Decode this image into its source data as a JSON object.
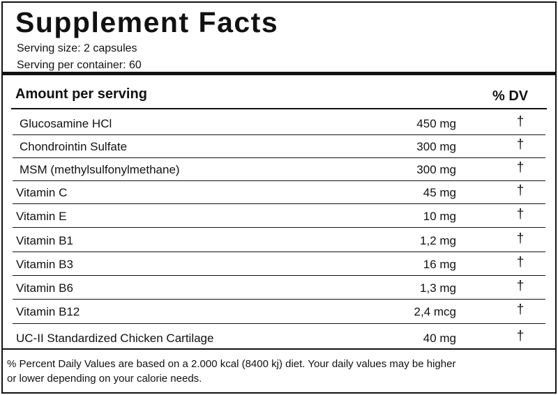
{
  "title": "Supplement Facts",
  "serving": [
    "Serving size: 2 capsules",
    "Serving per container: 60"
  ],
  "header": {
    "amount": "Amount per serving",
    "dv": "% DV"
  },
  "rows": [
    {
      "name": "Glucosamine HCl",
      "amount": "450 mg",
      "dv": "†"
    },
    {
      "name": "Chondrointin Sulfate",
      "amount": "300 mg",
      "dv": "†"
    },
    {
      "name": "MSM (methylsulfonylmethane)",
      "amount": "300 mg",
      "dv": "†"
    },
    {
      "name": "Vitamin C",
      "amount": "45 mg",
      "dv": "†"
    },
    {
      "name": "Vitamin E",
      "amount": "10 mg",
      "dv": "†"
    },
    {
      "name": "Vitamin B1",
      "amount": "1,2 mg",
      "dv": "†"
    },
    {
      "name": "Vitamin B3",
      "amount": "16 mg",
      "dv": "†"
    },
    {
      "name": "Vitamin B6",
      "amount": "1,3 mg",
      "dv": "†"
    },
    {
      "name": "Vitamin B12",
      "amount": "2,4 mcg",
      "dv": "†"
    },
    {
      "name": "UC-II Standardized Chicken Cartilage",
      "amount": "40 mg",
      "dv": "†"
    }
  ],
  "footnote": [
    "% Percent Daily Values are based on a 2.000 kcal (8400 kj) diet. Your daily values may be higher",
    "or lower depending on your calorie needs."
  ]
}
